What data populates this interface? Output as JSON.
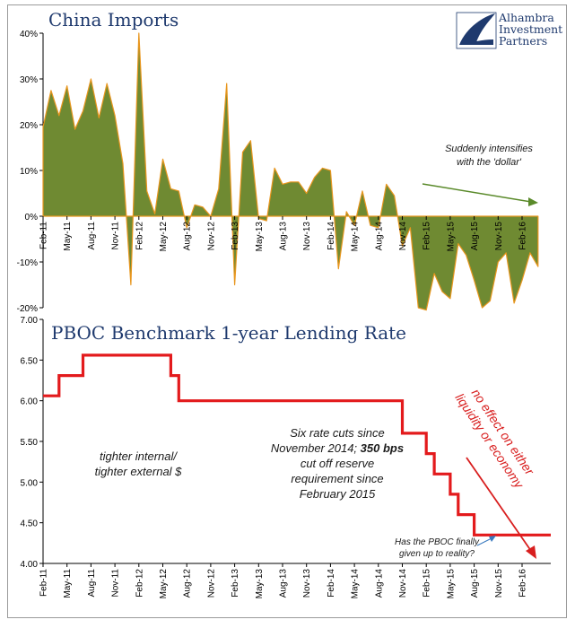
{
  "logo": {
    "line1": "Alhambra",
    "line2": "Investment",
    "line3": "Partners"
  },
  "chart_data": [
    {
      "type": "area",
      "title": "China Imports",
      "x": [
        "Feb-11",
        "Mar-11",
        "Apr-11",
        "May-11",
        "Jun-11",
        "Jul-11",
        "Aug-11",
        "Sep-11",
        "Oct-11",
        "Nov-11",
        "Dec-11",
        "Jan-12",
        "Feb-12",
        "Mar-12",
        "Apr-12",
        "May-12",
        "Jun-12",
        "Jul-12",
        "Aug-12",
        "Sep-12",
        "Oct-12",
        "Nov-12",
        "Dec-12",
        "Jan-13",
        "Feb-13",
        "Mar-13",
        "Apr-13",
        "May-13",
        "Jun-13",
        "Jul-13",
        "Aug-13",
        "Sep-13",
        "Oct-13",
        "Nov-13",
        "Dec-13",
        "Jan-14",
        "Feb-14",
        "Mar-14",
        "Apr-14",
        "May-14",
        "Jun-14",
        "Jul-14",
        "Aug-14",
        "Sep-14",
        "Oct-14",
        "Nov-14",
        "Dec-14",
        "Jan-15",
        "Feb-15",
        "Mar-15",
        "Apr-15",
        "May-15",
        "Jun-15",
        "Jul-15",
        "Aug-15",
        "Sep-15",
        "Oct-15",
        "Nov-15",
        "Dec-15",
        "Jan-16",
        "Feb-16",
        "Mar-16",
        "Apr-16"
      ],
      "values": [
        19.5,
        27.5,
        22,
        28.5,
        19,
        23,
        30,
        21.5,
        29,
        22,
        11.5,
        -15,
        40,
        5.5,
        0.5,
        12.5,
        6,
        5.5,
        -2.5,
        2.5,
        2,
        0,
        6,
        29,
        -15,
        14,
        16.5,
        -0.5,
        -1,
        10.5,
        7,
        7.5,
        7.5,
        5,
        8.5,
        10.5,
        10,
        -11.5,
        1,
        -2,
        5.5,
        -2,
        -2.5,
        7,
        4.5,
        -6.5,
        -2.5,
        -20,
        -20.5,
        -12.5,
        -16.5,
        -18,
        -6,
        -8.5,
        -14,
        -20,
        -18.5,
        -10,
        -8,
        -19,
        -14,
        -8,
        -11
      ],
      "tick_labels": [
        "Feb-11",
        "May-11",
        "Aug-11",
        "Nov-11",
        "Feb-12",
        "May-12",
        "Aug-12",
        "Nov-12",
        "Feb-13",
        "May-13",
        "Aug-13",
        "Nov-13",
        "Feb-14",
        "May-14",
        "Aug-14",
        "Nov-14",
        "Feb-15",
        "May-15",
        "Aug-15",
        "Nov-15",
        "Feb-16"
      ],
      "y_ticks": [
        "40%",
        "30%",
        "20%",
        "10%",
        "0%",
        "-10%",
        "-20%"
      ],
      "ylim": [
        -20,
        40
      ],
      "colors": {
        "fill": "#6f8a32",
        "stroke": "#e8961e"
      },
      "annotations": [
        "Suddenly intensifies",
        "with the 'dollar'"
      ]
    },
    {
      "type": "line",
      "title": "PBOC Benchmark 1-year Lending Rate",
      "x": [
        "Feb-11",
        "Feb-11",
        "Apr-11",
        "Apr-11",
        "Jul-11",
        "Jul-11",
        "Jun-12",
        "Jun-12",
        "Jul-12",
        "Jul-12",
        "Nov-14",
        "Nov-14",
        "Feb-15",
        "Feb-15",
        "Mar-15",
        "Mar-15",
        "May-15",
        "May-15",
        "Jun-15",
        "Jun-15",
        "Aug-15",
        "Aug-15",
        "Oct-15",
        "Oct-15",
        "Apr-16"
      ],
      "values": [
        6.06,
        6.06,
        6.06,
        6.31,
        6.31,
        6.56,
        6.56,
        6.31,
        6.31,
        6.0,
        6.0,
        5.6,
        5.6,
        5.35,
        5.35,
        5.1,
        5.1,
        4.85,
        4.85,
        4.6,
        4.6,
        4.35,
        4.35,
        4.35,
        4.35
      ],
      "tick_labels": [
        "Feb-11",
        "May-11",
        "Aug-11",
        "Nov-11",
        "Feb-12",
        "May-12",
        "Aug-12",
        "Nov-12",
        "Feb-13",
        "May-13",
        "Aug-13",
        "Nov-13",
        "Feb-14",
        "May-14",
        "Aug-14",
        "Nov-14",
        "Feb-15",
        "May-15",
        "Aug-15",
        "Nov-15",
        "Feb-16"
      ],
      "y_ticks": [
        "7.00",
        "6.50",
        "6.00",
        "5.50",
        "5.00",
        "4.50",
        "4.00"
      ],
      "ylim": [
        4.0,
        7.0
      ],
      "colors": {
        "line": "#e31a1c"
      },
      "annotations": {
        "left": [
          "tighter internal/",
          "tighter external $"
        ],
        "middle_1": "Six rate cuts since",
        "middle_2a": "November 2014; ",
        "middle_2b": "350 bps",
        "middle_3": "cut off reserve",
        "middle_4": "requirement since",
        "middle_5": "February 2015",
        "red_1": "no effect on either",
        "red_2": "liquidity or economy",
        "question_1": "Has the PBOC finally",
        "question_2": "given up to reality?"
      }
    }
  ]
}
